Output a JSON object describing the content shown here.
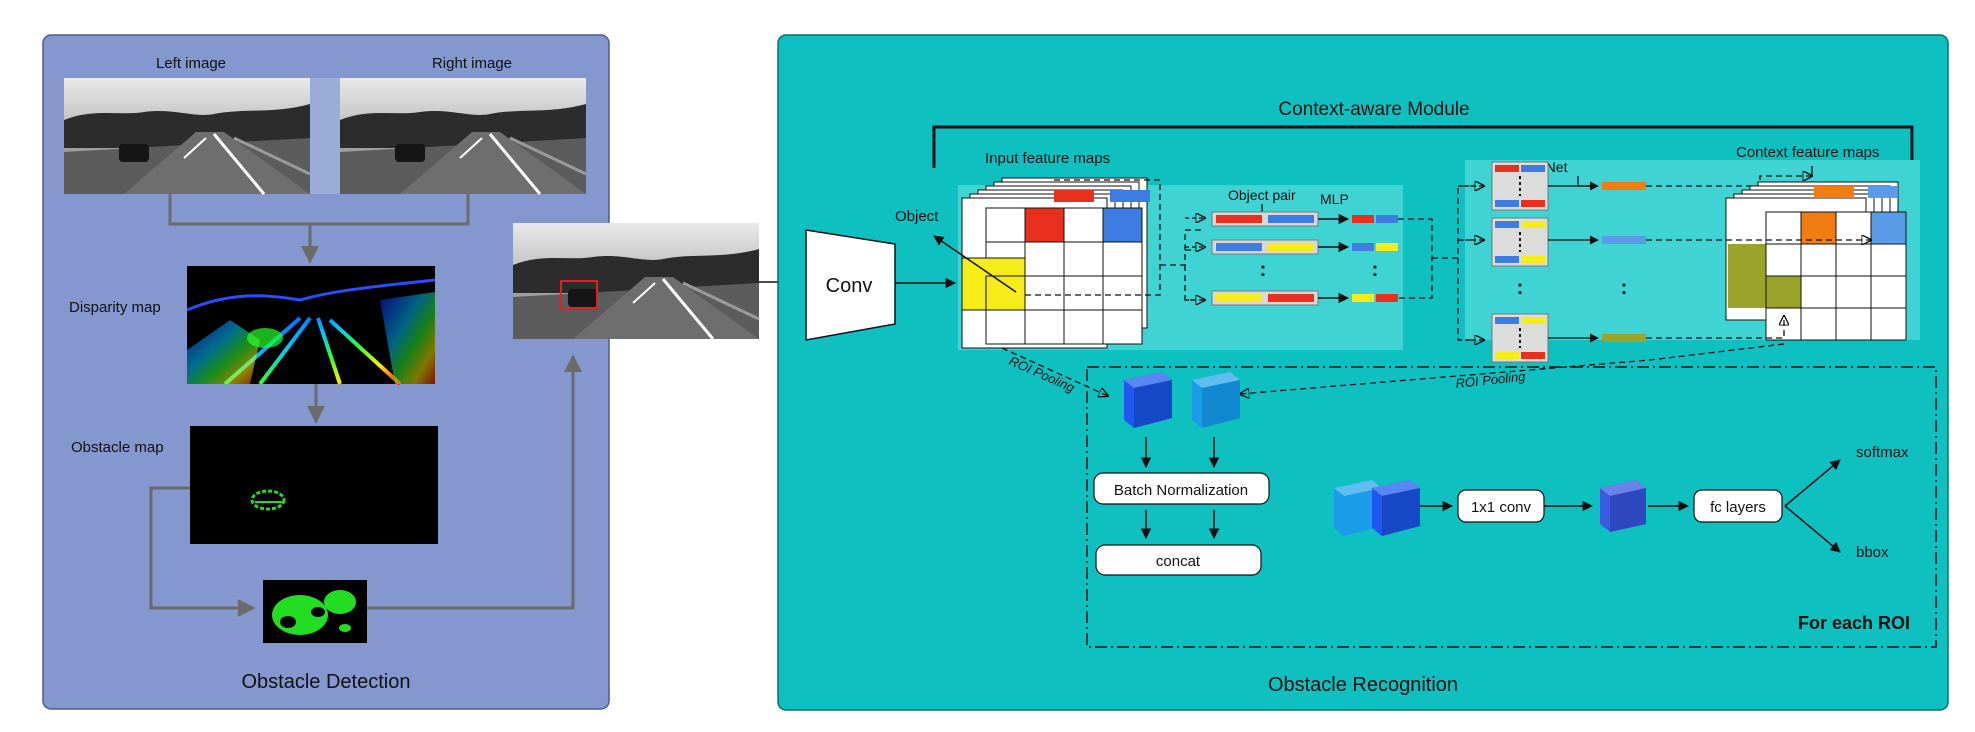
{
  "left_panel": {
    "title": "Obstacle Detection",
    "left_image_label": "Left image",
    "right_image_label": "Right image",
    "disparity_label": "Disparity map",
    "obstacle_label": "Obstacle map"
  },
  "right_panel": {
    "title": "Obstacle Recognition",
    "module_title": "Context-aware Module",
    "conv_label": "Conv",
    "object_label": "Object",
    "input_maps_label": "Input feature maps",
    "object_pair_label": "Object pair",
    "mlp_label": "MLP",
    "convnet_label": "ConvNet",
    "context_maps_label": "Context feature maps",
    "roi_pooling_left": "ROI Pooling",
    "roi_pooling_right": "ROI Pooling",
    "batch_norm_label": "Batch Normalization",
    "concat_label": "concat",
    "conv1x1_label": "1x1 conv",
    "fc_label": "fc layers",
    "softmax_label": "softmax",
    "bbox_label": "bbox",
    "roi_box_label": "For each ROI",
    "dots": ":"
  },
  "colors": {
    "left_panel_fill": "#8497cf",
    "right_panel_fill": "#0fc0c0",
    "red": "#e8311c",
    "blue": "#3d7ce0",
    "yellow": "#f5ec19",
    "orange": "#f07d12",
    "olive": "#9ba42a",
    "light_blue": "#5a9be8",
    "cube_dark": "#1f57f0",
    "cube_light": "#1a9ce8",
    "cube_mid": "#3a5ae0"
  }
}
